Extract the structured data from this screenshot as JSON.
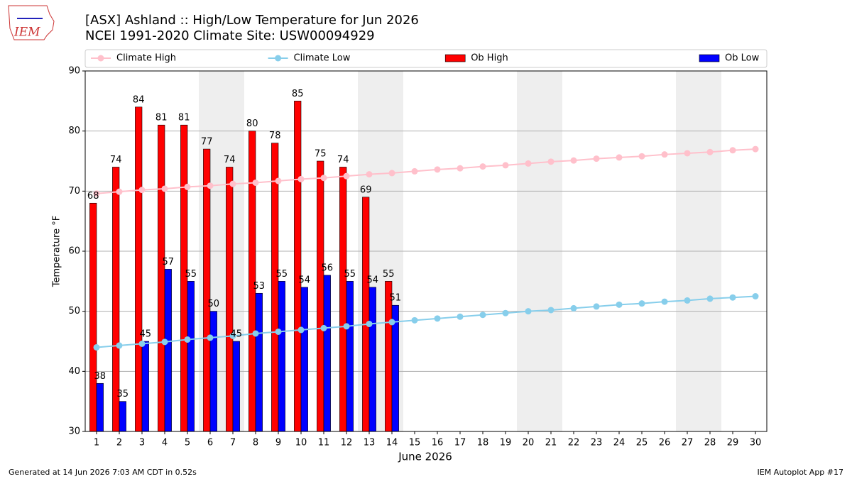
{
  "chart_data": {
    "type": "bar",
    "title": "[ASX] Ashland :: High/Low Temperature for Jun 2026",
    "subtitle": "NCEI 1991-2020 Climate Site: USW00094929",
    "xlabel": "June 2026",
    "ylabel": "Temperature °F",
    "logo_text": "IEM",
    "footer_left": "Generated at 14 Jun 2026 7:03 AM CDT in 0.52s",
    "footer_right": "IEM Autoplot App #17",
    "legend": "top",
    "grid": true,
    "x": [
      1,
      2,
      3,
      4,
      5,
      6,
      7,
      8,
      9,
      10,
      11,
      12,
      13,
      14,
      15,
      16,
      17,
      18,
      19,
      20,
      21,
      22,
      23,
      24,
      25,
      26,
      27,
      28,
      29,
      30
    ],
    "xlim": [
      0.5,
      30.5
    ],
    "xticks": [
      1,
      2,
      3,
      4,
      5,
      6,
      7,
      8,
      9,
      10,
      11,
      12,
      13,
      14,
      15,
      16,
      17,
      18,
      19,
      20,
      21,
      22,
      23,
      24,
      25,
      26,
      27,
      28,
      29,
      30
    ],
    "ylim": [
      30,
      90
    ],
    "yticks": [
      30,
      40,
      50,
      60,
      70,
      80,
      90
    ],
    "series": [
      {
        "name": "Climate High",
        "type": "line",
        "color": "#ffc0cb",
        "values": [
          69.6,
          69.9,
          70.2,
          70.4,
          70.7,
          70.9,
          71.2,
          71.4,
          71.7,
          72.0,
          72.2,
          72.5,
          72.8,
          73.0,
          73.3,
          73.6,
          73.8,
          74.1,
          74.3,
          74.6,
          74.9,
          75.1,
          75.4,
          75.6,
          75.8,
          76.1,
          76.3,
          76.5,
          76.8,
          77.0
        ]
      },
      {
        "name": "Climate Low",
        "type": "line",
        "color": "#87ceeb",
        "values": [
          44.0,
          44.3,
          44.6,
          44.9,
          45.3,
          45.6,
          45.9,
          46.3,
          46.6,
          46.9,
          47.2,
          47.5,
          47.9,
          48.2,
          48.5,
          48.8,
          49.1,
          49.4,
          49.7,
          50.0,
          50.2,
          50.5,
          50.8,
          51.1,
          51.3,
          51.6,
          51.8,
          52.1,
          52.3,
          52.5
        ]
      },
      {
        "name": "Ob High",
        "type": "bar",
        "color": "#ff0000",
        "values": [
          68,
          74,
          84,
          81,
          81,
          77,
          74,
          80,
          78,
          85,
          75,
          74,
          69,
          55,
          null,
          null,
          null,
          null,
          null,
          null,
          null,
          null,
          null,
          null,
          null,
          null,
          null,
          null,
          null,
          null
        ]
      },
      {
        "name": "Ob Low",
        "type": "bar",
        "color": "#0000ff",
        "values": [
          38,
          35,
          45,
          57,
          55,
          50,
          45,
          53,
          55,
          54,
          56,
          55,
          54,
          51,
          null,
          null,
          null,
          null,
          null,
          null,
          null,
          null,
          null,
          null,
          null,
          null,
          null,
          null,
          null,
          null
        ]
      }
    ]
  }
}
